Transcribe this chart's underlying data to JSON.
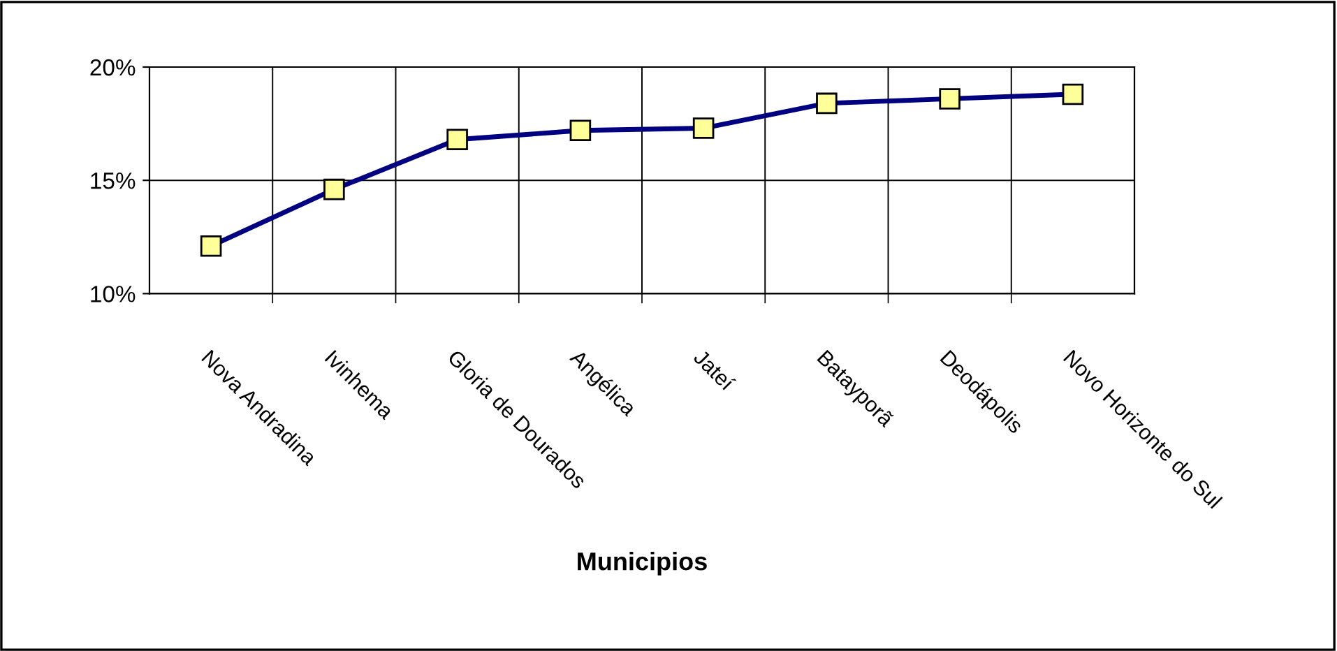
{
  "chart_data": {
    "type": "line",
    "xlabel": "Municipios",
    "categories": [
      "Nova Andradina",
      "Ivinhema",
      "Gloria de Dourados",
      "Angélica",
      "Jateí",
      "Batayporã",
      "Deodápolis",
      "Novo Horizonte do Sul"
    ],
    "series": [
      {
        "color": "#000080",
        "values": [
          12.1,
          14.6,
          16.8,
          17.2,
          17.3,
          18.4,
          18.6,
          18.8
        ]
      }
    ],
    "ylim": [
      10,
      20
    ],
    "yticks": [
      {
        "value": 10,
        "label": "10%"
      },
      {
        "value": 15,
        "label": "15%"
      },
      {
        "value": 20,
        "label": "20%"
      }
    ],
    "grid": true,
    "legend": false,
    "marker": "square",
    "line_style": "solid"
  }
}
